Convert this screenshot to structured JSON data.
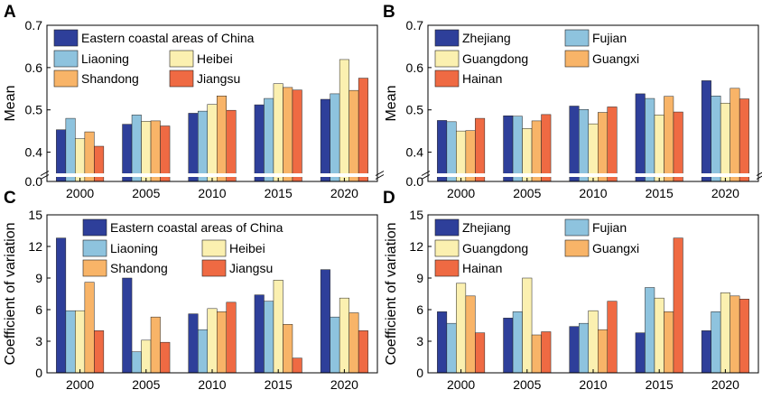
{
  "colors": {
    "Eastern coastal areas of China": "#2e3f9a",
    "Liaoning": "#8ec3de",
    "Heibei": "#fbf0b0",
    "Shandong": "#f8b468",
    "Jiangsu": "#ef6a43",
    "Zhejiang": "#2e3f9a",
    "Fujian": "#8ec3de",
    "Guangdong": "#fbf0b0",
    "Guangxi": "#f8b468",
    "Hainan": "#ef6a43"
  },
  "chart_data": [
    {
      "panel": "A",
      "type": "bar",
      "ylabel": "Mean",
      "categories": [
        "2000",
        "2005",
        "2010",
        "2015",
        "2020"
      ],
      "ylim": [
        0.0,
        0.7
      ],
      "axis_break": [
        0.0,
        0.35
      ],
      "yticks": [
        0.4,
        0.5,
        0.6,
        0.7
      ],
      "yticks_low": [
        0.0
      ],
      "ytick_labels": [
        "0.4",
        "0.5",
        "0.6",
        "0.7"
      ],
      "ytick_labels_low": [
        "0.0"
      ],
      "legend_position": "top-left",
      "legend_layout": "first-entry-full-row-then-two-columns",
      "series": [
        {
          "name": "Eastern coastal areas of China",
          "values": [
            0.453,
            0.466,
            0.492,
            0.512,
            0.525
          ]
        },
        {
          "name": "Liaoning",
          "values": [
            0.48,
            0.488,
            0.497,
            0.527,
            0.538
          ]
        },
        {
          "name": "Heibei",
          "values": [
            0.432,
            0.473,
            0.513,
            0.562,
            0.619
          ]
        },
        {
          "name": "Shandong",
          "values": [
            0.448,
            0.474,
            0.533,
            0.553,
            0.546
          ]
        },
        {
          "name": "Jiangsu",
          "values": [
            0.414,
            0.462,
            0.499,
            0.547,
            0.575
          ]
        }
      ]
    },
    {
      "panel": "B",
      "type": "bar",
      "ylabel": "Mean",
      "categories": [
        "2000",
        "2005",
        "2010",
        "2015",
        "2020"
      ],
      "ylim": [
        0.0,
        0.7
      ],
      "axis_break": [
        0.0,
        0.35
      ],
      "yticks": [
        0.4,
        0.5,
        0.6,
        0.7
      ],
      "yticks_low": [
        0.0
      ],
      "ytick_labels": [
        "0.4",
        "0.5",
        "0.6",
        "0.7"
      ],
      "ytick_labels_low": [
        "0.0"
      ],
      "legend_position": "top-left",
      "legend_layout": "two-columns",
      "series": [
        {
          "name": "Zhejiang",
          "values": [
            0.475,
            0.486,
            0.509,
            0.538,
            0.569
          ]
        },
        {
          "name": "Fujian",
          "values": [
            0.472,
            0.485,
            0.501,
            0.527,
            0.533
          ]
        },
        {
          "name": "Guangdong",
          "values": [
            0.45,
            0.456,
            0.467,
            0.488,
            0.516
          ]
        },
        {
          "name": "Guangxi",
          "values": [
            0.451,
            0.474,
            0.494,
            0.532,
            0.551
          ]
        },
        {
          "name": "Hainan",
          "values": [
            0.48,
            0.489,
            0.507,
            0.495,
            0.526
          ]
        }
      ]
    },
    {
      "panel": "C",
      "type": "bar",
      "ylabel": "Coefficient of variation",
      "categories": [
        "2000",
        "2005",
        "2010",
        "2015",
        "2020"
      ],
      "ylim": [
        0,
        15
      ],
      "yticks": [
        0,
        3,
        6,
        9,
        12,
        15
      ],
      "ytick_labels": [
        "0",
        "3",
        "6",
        "9",
        "12",
        "15"
      ],
      "legend_position": "top-center",
      "legend_layout": "first-entry-full-row-then-two-columns",
      "series": [
        {
          "name": "Eastern coastal areas of China",
          "values": [
            12.8,
            9.0,
            5.6,
            7.4,
            9.8
          ]
        },
        {
          "name": "Liaoning",
          "values": [
            5.9,
            2.0,
            4.1,
            6.8,
            5.3
          ]
        },
        {
          "name": "Heibei",
          "values": [
            5.9,
            3.1,
            6.1,
            8.8,
            7.1
          ]
        },
        {
          "name": "Shandong",
          "values": [
            8.6,
            5.3,
            5.8,
            4.6,
            5.7
          ]
        },
        {
          "name": "Jiangsu",
          "values": [
            4.0,
            2.9,
            6.7,
            1.4,
            4.0
          ]
        }
      ]
    },
    {
      "panel": "D",
      "type": "bar",
      "ylabel": "Coefficient of variation",
      "categories": [
        "2000",
        "2005",
        "2010",
        "2015",
        "2020"
      ],
      "ylim": [
        0,
        15
      ],
      "yticks": [
        0,
        3,
        6,
        9,
        12,
        15
      ],
      "ytick_labels": [
        "0",
        "3",
        "6",
        "9",
        "12",
        "15"
      ],
      "legend_position": "top-left",
      "legend_layout": "two-columns",
      "series": [
        {
          "name": "Zhejiang",
          "values": [
            5.8,
            5.2,
            4.4,
            3.8,
            4.0
          ]
        },
        {
          "name": "Fujian",
          "values": [
            4.7,
            5.8,
            4.7,
            8.1,
            5.8
          ]
        },
        {
          "name": "Guangdong",
          "values": [
            8.5,
            9.0,
            5.9,
            7.1,
            7.6
          ]
        },
        {
          "name": "Guangxi",
          "values": [
            7.3,
            3.6,
            4.1,
            5.8,
            7.3
          ]
        },
        {
          "name": "Hainan",
          "values": [
            3.8,
            3.9,
            6.8,
            12.8,
            7.0
          ]
        }
      ]
    }
  ]
}
